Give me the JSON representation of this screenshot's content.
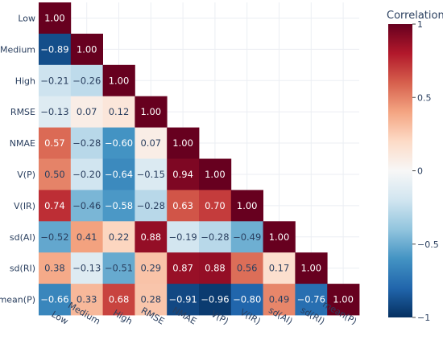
{
  "chart_data": {
    "type": "heatmap",
    "title": "",
    "variables": [
      "Low",
      "Medium",
      "High",
      "RMSE",
      "NMAE",
      "V(P)",
      "V(IR)",
      "sd(AI)",
      "sd(RI)",
      "mean(P)"
    ],
    "matrix": [
      [
        1.0
      ],
      [
        -0.89,
        1.0
      ],
      [
        -0.21,
        -0.26,
        1.0
      ],
      [
        -0.13,
        0.07,
        0.12,
        1.0
      ],
      [
        0.57,
        -0.28,
        -0.6,
        0.07,
        1.0
      ],
      [
        0.5,
        -0.2,
        -0.64,
        -0.15,
        0.94,
        1.0
      ],
      [
        0.74,
        -0.46,
        -0.58,
        -0.28,
        0.63,
        0.7,
        1.0
      ],
      [
        -0.52,
        0.41,
        0.22,
        0.88,
        -0.19,
        -0.28,
        -0.49,
        1.0
      ],
      [
        0.38,
        -0.13,
        -0.51,
        0.29,
        0.87,
        0.88,
        0.56,
        0.17,
        1.0
      ],
      [
        -0.66,
        0.33,
        0.68,
        0.28,
        -0.91,
        -0.96,
        -0.8,
        0.49,
        -0.76,
        1.0
      ]
    ],
    "value_format": "2 decimals",
    "colorscale": "RdBu",
    "zmin": -1,
    "zmax": 1,
    "colorbar": {
      "title": "Correlation",
      "ticks": [
        1,
        0.5,
        0,
        -0.5,
        -1
      ],
      "tick_labels": [
        "1",
        "0.5",
        "0",
        "−0.5",
        "−1"
      ]
    },
    "grid": true
  }
}
